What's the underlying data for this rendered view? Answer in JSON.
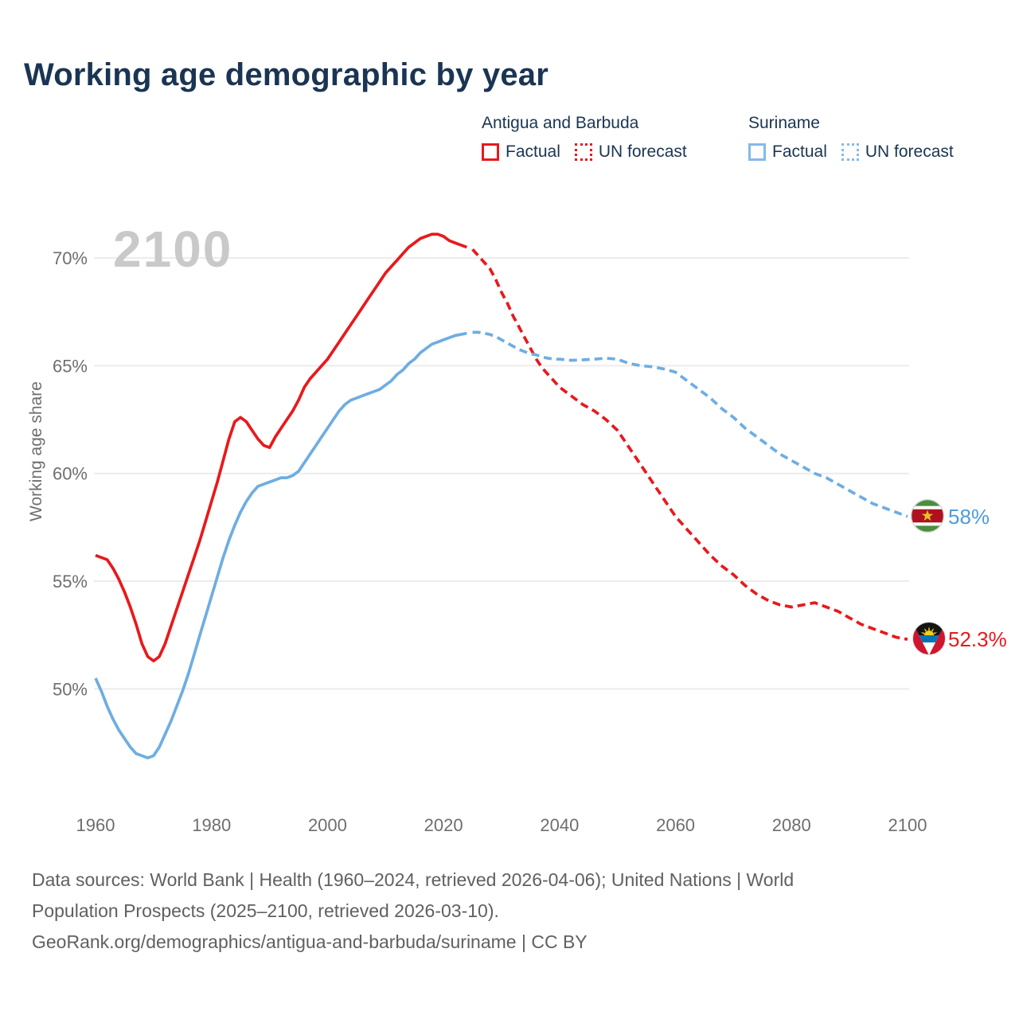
{
  "header": {
    "title": "Working age demographic by year"
  },
  "legend": {
    "groups": [
      {
        "country": "Antigua and Barbuda",
        "items": [
          {
            "label": "Factual",
            "style": "solid"
          },
          {
            "label": "UN forecast",
            "style": "dotted"
          }
        ],
        "color": "#e8191c"
      },
      {
        "country": "Suriname",
        "items": [
          {
            "label": "Factual",
            "style": "solid"
          },
          {
            "label": "UN forecast",
            "style": "dotted"
          }
        ],
        "color": "#85b9e8"
      }
    ]
  },
  "chart": {
    "watermark": "2100",
    "y_axis_title": "Working age share",
    "end_labels": {
      "suriname": "58%",
      "antigua": "52.3%"
    }
  },
  "chart_data": {
    "type": "line",
    "title": "Working age demographic by year",
    "xlabel": "",
    "ylabel": "Working age share",
    "watermark": "2100",
    "x_range": [
      1960,
      2100
    ],
    "xticks": [
      1960,
      1980,
      2000,
      2020,
      2040,
      2060,
      2080,
      2100
    ],
    "yticks": [
      50,
      55,
      60,
      65,
      70
    ],
    "ytick_suffix": "%",
    "ylim": [
      46,
      72
    ],
    "grid": "horizontal",
    "legend_position": "top-right",
    "colors": {
      "antigua": "#e8191c",
      "suriname": "#6eade2",
      "antigua_label": "#e8191c",
      "suriname_label": "#4e9cd8"
    },
    "series": [
      {
        "id": "antigua-factual",
        "name": "Antigua and Barbuda — Factual",
        "color": "#e8191c",
        "style": "solid",
        "points": [
          [
            1960,
            56.2
          ],
          [
            1961,
            56.1
          ],
          [
            1962,
            56.0
          ],
          [
            1963,
            55.6
          ],
          [
            1964,
            55.1
          ],
          [
            1965,
            54.5
          ],
          [
            1966,
            53.8
          ],
          [
            1967,
            53.0
          ],
          [
            1968,
            52.1
          ],
          [
            1969,
            51.5
          ],
          [
            1970,
            51.3
          ],
          [
            1971,
            51.5
          ],
          [
            1972,
            52.1
          ],
          [
            1973,
            52.9
          ],
          [
            1974,
            53.7
          ],
          [
            1975,
            54.5
          ],
          [
            1976,
            55.3
          ],
          [
            1977,
            56.1
          ],
          [
            1978,
            56.9
          ],
          [
            1979,
            57.8
          ],
          [
            1980,
            58.7
          ],
          [
            1981,
            59.6
          ],
          [
            1982,
            60.6
          ],
          [
            1983,
            61.6
          ],
          [
            1984,
            62.4
          ],
          [
            1985,
            62.6
          ],
          [
            1986,
            62.4
          ],
          [
            1987,
            62.0
          ],
          [
            1988,
            61.6
          ],
          [
            1989,
            61.3
          ],
          [
            1990,
            61.2
          ],
          [
            1991,
            61.7
          ],
          [
            1992,
            62.1
          ],
          [
            1993,
            62.5
          ],
          [
            1994,
            62.9
          ],
          [
            1995,
            63.4
          ],
          [
            1996,
            64.0
          ],
          [
            1997,
            64.4
          ],
          [
            1998,
            64.7
          ],
          [
            1999,
            65.0
          ],
          [
            2000,
            65.3
          ],
          [
            2001,
            65.7
          ],
          [
            2002,
            66.1
          ],
          [
            2003,
            66.5
          ],
          [
            2004,
            66.9
          ],
          [
            2005,
            67.3
          ],
          [
            2006,
            67.7
          ],
          [
            2007,
            68.1
          ],
          [
            2008,
            68.5
          ],
          [
            2009,
            68.9
          ],
          [
            2010,
            69.3
          ],
          [
            2011,
            69.6
          ],
          [
            2012,
            69.9
          ],
          [
            2013,
            70.2
          ],
          [
            2014,
            70.5
          ],
          [
            2015,
            70.7
          ],
          [
            2016,
            70.9
          ],
          [
            2017,
            71.0
          ],
          [
            2018,
            71.1
          ],
          [
            2019,
            71.1
          ],
          [
            2020,
            71.0
          ],
          [
            2021,
            70.8
          ],
          [
            2022,
            70.7
          ],
          [
            2023,
            70.6
          ],
          [
            2024,
            70.5
          ]
        ]
      },
      {
        "id": "antigua-forecast",
        "name": "Antigua and Barbuda — UN forecast",
        "color": "#e8191c",
        "style": "dashed",
        "points": [
          [
            2025,
            70.4
          ],
          [
            2026,
            70.1
          ],
          [
            2027,
            69.8
          ],
          [
            2028,
            69.5
          ],
          [
            2029,
            69.0
          ],
          [
            2030,
            68.4
          ],
          [
            2031,
            67.9
          ],
          [
            2032,
            67.3
          ],
          [
            2033,
            66.8
          ],
          [
            2034,
            66.3
          ],
          [
            2035,
            65.8
          ],
          [
            2036,
            65.3
          ],
          [
            2037,
            64.9
          ],
          [
            2038,
            64.6
          ],
          [
            2039,
            64.3
          ],
          [
            2040,
            64.0
          ],
          [
            2042,
            63.6
          ],
          [
            2044,
            63.2
          ],
          [
            2046,
            62.9
          ],
          [
            2048,
            62.5
          ],
          [
            2050,
            62.0
          ],
          [
            2052,
            61.2
          ],
          [
            2054,
            60.4
          ],
          [
            2056,
            59.6
          ],
          [
            2058,
            58.8
          ],
          [
            2060,
            58.0
          ],
          [
            2062,
            57.4
          ],
          [
            2064,
            56.8
          ],
          [
            2066,
            56.2
          ],
          [
            2068,
            55.7
          ],
          [
            2070,
            55.3
          ],
          [
            2072,
            54.8
          ],
          [
            2074,
            54.4
          ],
          [
            2076,
            54.1
          ],
          [
            2078,
            53.9
          ],
          [
            2080,
            53.8
          ],
          [
            2082,
            53.9
          ],
          [
            2084,
            54.0
          ],
          [
            2086,
            53.8
          ],
          [
            2088,
            53.6
          ],
          [
            2090,
            53.3
          ],
          [
            2092,
            53.0
          ],
          [
            2094,
            52.8
          ],
          [
            2096,
            52.6
          ],
          [
            2098,
            52.4
          ],
          [
            2100,
            52.3
          ]
        ]
      },
      {
        "id": "suriname-factual",
        "name": "Suriname — Factual",
        "color": "#6eade2",
        "style": "solid",
        "points": [
          [
            1960,
            50.5
          ],
          [
            1961,
            49.9
          ],
          [
            1962,
            49.2
          ],
          [
            1963,
            48.6
          ],
          [
            1964,
            48.1
          ],
          [
            1965,
            47.7
          ],
          [
            1966,
            47.3
          ],
          [
            1967,
            47.0
          ],
          [
            1968,
            46.9
          ],
          [
            1969,
            46.8
          ],
          [
            1970,
            46.9
          ],
          [
            1971,
            47.3
          ],
          [
            1972,
            47.9
          ],
          [
            1973,
            48.5
          ],
          [
            1974,
            49.2
          ],
          [
            1975,
            49.9
          ],
          [
            1976,
            50.7
          ],
          [
            1977,
            51.6
          ],
          [
            1978,
            52.5
          ],
          [
            1979,
            53.4
          ],
          [
            1980,
            54.3
          ],
          [
            1981,
            55.2
          ],
          [
            1982,
            56.1
          ],
          [
            1983,
            56.9
          ],
          [
            1984,
            57.6
          ],
          [
            1985,
            58.2
          ],
          [
            1986,
            58.7
          ],
          [
            1987,
            59.1
          ],
          [
            1988,
            59.4
          ],
          [
            1989,
            59.5
          ],
          [
            1990,
            59.6
          ],
          [
            1991,
            59.7
          ],
          [
            1992,
            59.8
          ],
          [
            1993,
            59.8
          ],
          [
            1994,
            59.9
          ],
          [
            1995,
            60.1
          ],
          [
            1996,
            60.5
          ],
          [
            1997,
            60.9
          ],
          [
            1998,
            61.3
          ],
          [
            1999,
            61.7
          ],
          [
            2000,
            62.1
          ],
          [
            2001,
            62.5
          ],
          [
            2002,
            62.9
          ],
          [
            2003,
            63.2
          ],
          [
            2004,
            63.4
          ],
          [
            2005,
            63.5
          ],
          [
            2006,
            63.6
          ],
          [
            2007,
            63.7
          ],
          [
            2008,
            63.8
          ],
          [
            2009,
            63.9
          ],
          [
            2010,
            64.1
          ],
          [
            2011,
            64.3
          ],
          [
            2012,
            64.6
          ],
          [
            2013,
            64.8
          ],
          [
            2014,
            65.1
          ],
          [
            2015,
            65.3
          ],
          [
            2016,
            65.6
          ],
          [
            2017,
            65.8
          ],
          [
            2018,
            66.0
          ],
          [
            2019,
            66.1
          ],
          [
            2020,
            66.2
          ],
          [
            2021,
            66.3
          ],
          [
            2022,
            66.4
          ],
          [
            2023,
            66.45
          ],
          [
            2024,
            66.5
          ]
        ]
      },
      {
        "id": "suriname-forecast",
        "name": "Suriname — UN forecast",
        "color": "#6eade2",
        "style": "dashed",
        "points": [
          [
            2025,
            66.55
          ],
          [
            2026,
            66.55
          ],
          [
            2027,
            66.5
          ],
          [
            2028,
            66.45
          ],
          [
            2029,
            66.35
          ],
          [
            2030,
            66.2
          ],
          [
            2031,
            66.05
          ],
          [
            2032,
            65.9
          ],
          [
            2033,
            65.75
          ],
          [
            2034,
            65.65
          ],
          [
            2035,
            65.55
          ],
          [
            2036,
            65.5
          ],
          [
            2037,
            65.4
          ],
          [
            2038,
            65.35
          ],
          [
            2039,
            65.3
          ],
          [
            2040,
            65.3
          ],
          [
            2042,
            65.25
          ],
          [
            2044,
            65.27
          ],
          [
            2046,
            65.3
          ],
          [
            2048,
            65.35
          ],
          [
            2050,
            65.3
          ],
          [
            2052,
            65.1
          ],
          [
            2054,
            65.0
          ],
          [
            2056,
            64.95
          ],
          [
            2058,
            64.85
          ],
          [
            2060,
            64.7
          ],
          [
            2062,
            64.3
          ],
          [
            2064,
            63.9
          ],
          [
            2066,
            63.5
          ],
          [
            2068,
            63.0
          ],
          [
            2070,
            62.6
          ],
          [
            2072,
            62.1
          ],
          [
            2074,
            61.7
          ],
          [
            2076,
            61.3
          ],
          [
            2078,
            60.9
          ],
          [
            2080,
            60.6
          ],
          [
            2082,
            60.3
          ],
          [
            2084,
            60.0
          ],
          [
            2086,
            59.8
          ],
          [
            2088,
            59.5
          ],
          [
            2090,
            59.2
          ],
          [
            2092,
            58.9
          ],
          [
            2094,
            58.6
          ],
          [
            2096,
            58.4
          ],
          [
            2098,
            58.2
          ],
          [
            2100,
            58.0
          ]
        ]
      }
    ],
    "end_markers": [
      {
        "series": "Suriname",
        "flag": "suriname-flag-icon",
        "text": "58%",
        "value": 58.0
      },
      {
        "series": "Antigua and Barbuda",
        "flag": "antigua-flag-icon",
        "text": "52.3%",
        "value": 52.3
      }
    ]
  },
  "footer": {
    "line1": "Data sources: World Bank | Health (1960–2024, retrieved 2026-04-06); United Nations | World",
    "line2": "Population Prospects (2025–2100, retrieved 2026-03-10).",
    "line3": "GeoRank.org/demographics/antigua-and-barbuda/suriname | CC BY"
  }
}
